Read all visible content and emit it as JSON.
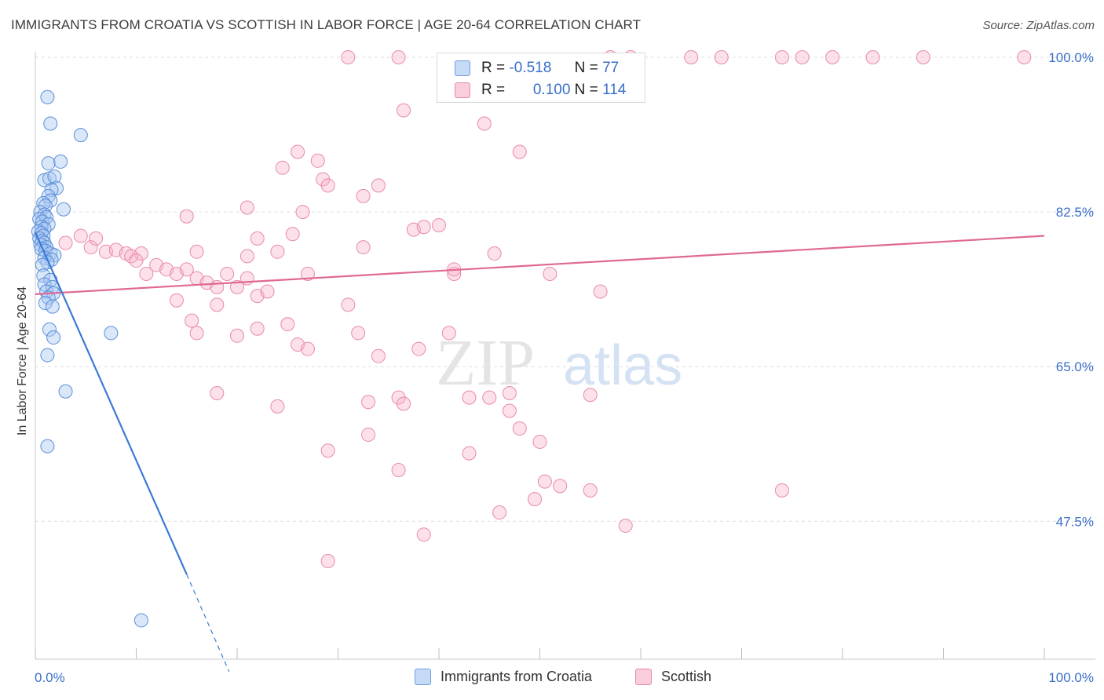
{
  "title": "IMMIGRANTS FROM CROATIA VS SCOTTISH IN LABOR FORCE | AGE 20-64 CORRELATION CHART",
  "source": "Source: ZipAtlas.com",
  "watermark": {
    "zip": "ZIP",
    "atlas": "atlas"
  },
  "legend": {
    "r_label": "R =",
    "n_label": "N =",
    "rows": [
      {
        "r": "-0.518",
        "n": "77",
        "color": "#a8c6f0"
      },
      {
        "r": "0.100",
        "n": "114",
        "color": "#f7b8cc"
      }
    ]
  },
  "colors": {
    "blue": "#3a7bd5",
    "pink": "#e06894",
    "blue_fill": "#c5daf6",
    "pink_fill": "#f9cddb",
    "axis_label": "#3a6fc8"
  },
  "chart_data": {
    "type": "scatter",
    "title": "IMMIGRANTS FROM CROATIA VS SCOTTISH IN LABOR FORCE | AGE 20-64 CORRELATION CHART",
    "xlabel": "",
    "ylabel": "In Labor Force | Age 20-64",
    "xlim": [
      0,
      100
    ],
    "ylim": [
      31.9,
      101.6
    ],
    "x_tick_labels": [
      "0.0%",
      "100.0%"
    ],
    "y_ticks": [
      47.5,
      65.0,
      82.5,
      100.0
    ],
    "y_tick_labels": [
      "47.5%",
      "65.0%",
      "82.5%",
      "100.0%"
    ],
    "grid": true,
    "series": [
      {
        "name": "Immigrants from Croatia",
        "color": "#3a7bd5",
        "r": -0.518,
        "n": 77,
        "trend": {
          "x0": 0,
          "y0": 80.2,
          "x1": 15.0,
          "y1": 41.5,
          "dash_x1": 19.2,
          "dash_y1": 30.5
        },
        "points": [
          [
            1.2,
            95.5
          ],
          [
            1.5,
            92.5
          ],
          [
            4.5,
            91.2
          ],
          [
            1.3,
            88.0
          ],
          [
            2.5,
            88.2
          ],
          [
            0.9,
            86.1
          ],
          [
            1.4,
            86.3
          ],
          [
            1.9,
            86.5
          ],
          [
            2.1,
            85.2
          ],
          [
            1.6,
            85.0
          ],
          [
            1.3,
            84.3
          ],
          [
            1.5,
            83.8
          ],
          [
            0.8,
            83.5
          ],
          [
            1.0,
            83.2
          ],
          [
            2.8,
            82.8
          ],
          [
            0.5,
            82.5
          ],
          [
            0.9,
            82.2
          ],
          [
            1.1,
            81.9
          ],
          [
            0.4,
            81.7
          ],
          [
            0.7,
            81.4
          ],
          [
            1.3,
            81.1
          ],
          [
            0.6,
            80.8
          ],
          [
            0.9,
            80.6
          ],
          [
            0.3,
            80.3
          ],
          [
            0.6,
            80.1
          ],
          [
            0.8,
            79.8
          ],
          [
            0.4,
            79.5
          ],
          [
            0.7,
            79.2
          ],
          [
            0.9,
            79.0
          ],
          [
            0.5,
            78.8
          ],
          [
            1.1,
            78.5
          ],
          [
            0.6,
            78.3
          ],
          [
            1.0,
            78.1
          ],
          [
            1.5,
            77.8
          ],
          [
            1.9,
            77.6
          ],
          [
            0.9,
            77.3
          ],
          [
            1.6,
            77.1
          ],
          [
            1.2,
            76.8
          ],
          [
            0.7,
            76.5
          ],
          [
            0.8,
            75.3
          ],
          [
            1.5,
            74.8
          ],
          [
            0.9,
            74.3
          ],
          [
            1.7,
            74.0
          ],
          [
            1.1,
            73.5
          ],
          [
            1.8,
            73.3
          ],
          [
            1.3,
            72.8
          ],
          [
            1.0,
            72.2
          ],
          [
            1.7,
            71.8
          ],
          [
            1.4,
            69.2
          ],
          [
            1.8,
            68.3
          ],
          [
            7.5,
            68.8
          ],
          [
            1.2,
            66.3
          ],
          [
            3.0,
            62.2
          ],
          [
            1.2,
            56.0
          ],
          [
            10.5,
            36.3
          ]
        ]
      },
      {
        "name": "Scottish",
        "color": "#e06894",
        "r": 0.1,
        "n": 114,
        "trend": {
          "x0": 0,
          "y0": 73.2,
          "x1": 100,
          "y1": 79.8
        },
        "points": [
          [
            31,
            100
          ],
          [
            36,
            100
          ],
          [
            59,
            100
          ],
          [
            65,
            100
          ],
          [
            68,
            100
          ],
          [
            74,
            100
          ],
          [
            76,
            100
          ],
          [
            79,
            100
          ],
          [
            83,
            100
          ],
          [
            88,
            100
          ],
          [
            98,
            100
          ],
          [
            57,
            100
          ],
          [
            36.5,
            94.0
          ],
          [
            44.5,
            92.5
          ],
          [
            48,
            89.3
          ],
          [
            26,
            89.3
          ],
          [
            28,
            88.3
          ],
          [
            24.5,
            87.5
          ],
          [
            28.5,
            86.2
          ],
          [
            29,
            85.5
          ],
          [
            34,
            85.5
          ],
          [
            32.5,
            84.3
          ],
          [
            21.0,
            83.0
          ],
          [
            26.5,
            82.5
          ],
          [
            15,
            82.0
          ],
          [
            37.5,
            80.5
          ],
          [
            38.5,
            80.8
          ],
          [
            40,
            81.0
          ],
          [
            25.5,
            80.0
          ],
          [
            22,
            79.5
          ],
          [
            32.5,
            78.5
          ],
          [
            16,
            78.0
          ],
          [
            21,
            77.5
          ],
          [
            24,
            78.0
          ],
          [
            45.5,
            77.8
          ],
          [
            10.5,
            77.8
          ],
          [
            3,
            79.0
          ],
          [
            4.5,
            79.8
          ],
          [
            5.5,
            78.5
          ],
          [
            6,
            79.5
          ],
          [
            7,
            78.0
          ],
          [
            8,
            78.2
          ],
          [
            9,
            77.8
          ],
          [
            9.5,
            77.5
          ],
          [
            10,
            77.0
          ],
          [
            11,
            75.5
          ],
          [
            12,
            76.5
          ],
          [
            13,
            76.0
          ],
          [
            14,
            75.5
          ],
          [
            15,
            76.0
          ],
          [
            16,
            75.0
          ],
          [
            17,
            74.5
          ],
          [
            18,
            74.0
          ],
          [
            19,
            75.5
          ],
          [
            20,
            74.0
          ],
          [
            21,
            75.0
          ],
          [
            22,
            73.0
          ],
          [
            23,
            73.5
          ],
          [
            27,
            75.5
          ],
          [
            41.5,
            75.5
          ],
          [
            41.5,
            76.0
          ],
          [
            51,
            75.5
          ],
          [
            56,
            73.5
          ],
          [
            14,
            72.5
          ],
          [
            18,
            72.0
          ],
          [
            31,
            72.0
          ],
          [
            15.5,
            70.2
          ],
          [
            22,
            69.3
          ],
          [
            25,
            69.8
          ],
          [
            16,
            68.8
          ],
          [
            32,
            68.8
          ],
          [
            41,
            68.8
          ],
          [
            20,
            68.5
          ],
          [
            26,
            67.5
          ],
          [
            27,
            67.0
          ],
          [
            38,
            67.0
          ],
          [
            34,
            66.2
          ],
          [
            18,
            62.0
          ],
          [
            33,
            61.0
          ],
          [
            36,
            61.5
          ],
          [
            36.5,
            60.8
          ],
          [
            43,
            61.5
          ],
          [
            45,
            61.5
          ],
          [
            47,
            62.0
          ],
          [
            55,
            61.8
          ],
          [
            24,
            60.5
          ],
          [
            47,
            60.0
          ],
          [
            48,
            58.0
          ],
          [
            33,
            57.3
          ],
          [
            50,
            56.5
          ],
          [
            29,
            55.5
          ],
          [
            43,
            55.2
          ],
          [
            36,
            53.3
          ],
          [
            50.5,
            52.0
          ],
          [
            52,
            51.5
          ],
          [
            55,
            51.0
          ],
          [
            74,
            51.0
          ],
          [
            49.5,
            50.0
          ],
          [
            46,
            48.5
          ],
          [
            58.5,
            47.0
          ],
          [
            38.5,
            46.0
          ],
          [
            29,
            43.0
          ]
        ]
      }
    ]
  },
  "bottom_legend": [
    {
      "label": "Immigrants from Croatia",
      "color": "#c5daf6",
      "border": "#6f9edf"
    },
    {
      "label": "Scottish",
      "color": "#f9cddb",
      "border": "#e68aaa"
    }
  ]
}
